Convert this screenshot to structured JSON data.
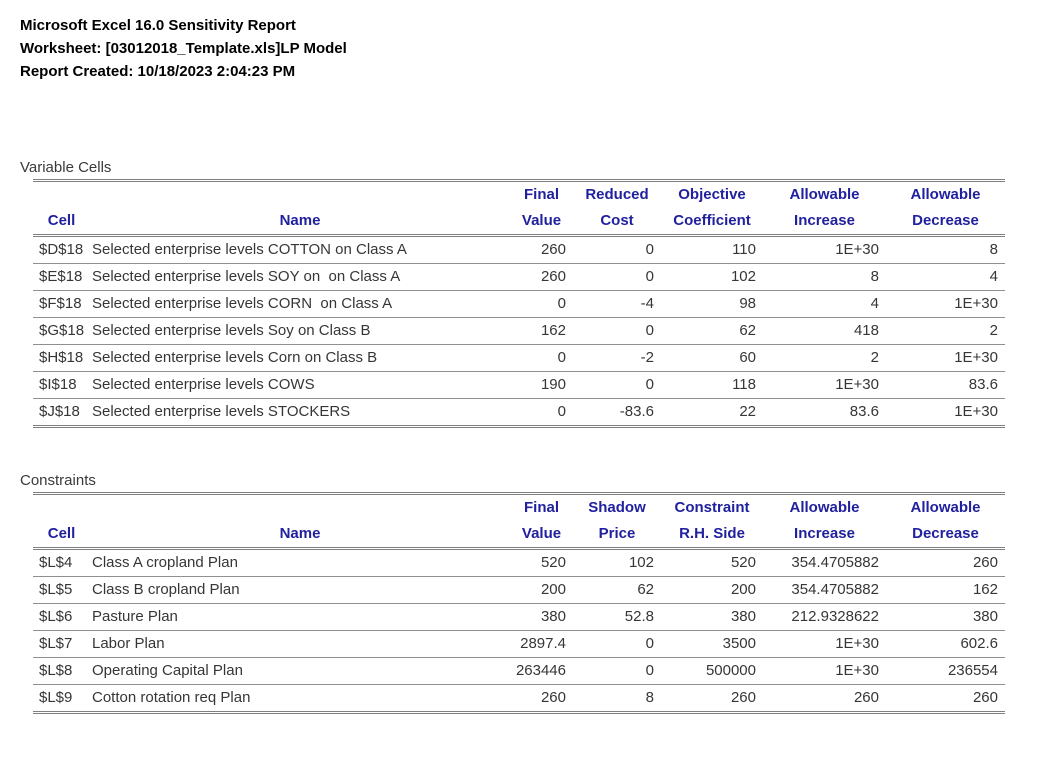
{
  "header": {
    "title": "Microsoft Excel 16.0 Sensitivity Report",
    "worksheet": "Worksheet: [03012018_Template.xls]LP Model",
    "created": "Report Created: 10/18/2023 2:04:23 PM"
  },
  "colors": {
    "header_text": "#21219F",
    "border": "#808080",
    "body_text": "#363636"
  },
  "variable_cells": {
    "section_label": "Variable Cells",
    "columns": [
      {
        "line1": "",
        "line2": "Cell"
      },
      {
        "line1": "",
        "line2": "Name"
      },
      {
        "line1": "Final",
        "line2": "Value"
      },
      {
        "line1": "Reduced",
        "line2": "Cost"
      },
      {
        "line1": "Objective",
        "line2": "Coefficient"
      },
      {
        "line1": "Allowable",
        "line2": "Increase"
      },
      {
        "line1": "Allowable",
        "line2": "Decrease"
      }
    ],
    "rows": [
      [
        "$D$18",
        "Selected enterprise levels COTTON on Class A",
        "260",
        "0",
        "110",
        "1E+30",
        "8"
      ],
      [
        "$E$18",
        "Selected enterprise levels SOY on  on Class A",
        "260",
        "0",
        "102",
        "8",
        "4"
      ],
      [
        "$F$18",
        "Selected enterprise levels CORN  on Class A",
        "0",
        "-4",
        "98",
        "4",
        "1E+30"
      ],
      [
        "$G$18",
        "Selected enterprise levels Soy on Class B",
        "162",
        "0",
        "62",
        "418",
        "2"
      ],
      [
        "$H$18",
        "Selected enterprise levels Corn on Class B",
        "0",
        "-2",
        "60",
        "2",
        "1E+30"
      ],
      [
        "$I$18",
        "Selected enterprise levels COWS",
        "190",
        "0",
        "118",
        "1E+30",
        "83.6"
      ],
      [
        "$J$18",
        "Selected enterprise levels STOCKERS",
        "0",
        "-83.6",
        "22",
        "83.6",
        "1E+30"
      ]
    ]
  },
  "constraints": {
    "section_label": "Constraints",
    "columns": [
      {
        "line1": "",
        "line2": "Cell"
      },
      {
        "line1": "",
        "line2": "Name"
      },
      {
        "line1": "Final",
        "line2": "Value"
      },
      {
        "line1": "Shadow",
        "line2": "Price"
      },
      {
        "line1": "Constraint",
        "line2": "R.H. Side"
      },
      {
        "line1": "Allowable",
        "line2": "Increase"
      },
      {
        "line1": "Allowable",
        "line2": "Decrease"
      }
    ],
    "rows": [
      [
        "$L$4",
        "Class A cropland Plan",
        "520",
        "102",
        "520",
        "354.4705882",
        "260"
      ],
      [
        "$L$5",
        "Class B cropland Plan",
        "200",
        "62",
        "200",
        "354.4705882",
        "162"
      ],
      [
        "$L$6",
        "Pasture Plan",
        "380",
        "52.8",
        "380",
        "212.9328622",
        "380"
      ],
      [
        "$L$7",
        "Labor Plan",
        "2897.4",
        "0",
        "3500",
        "1E+30",
        "602.6"
      ],
      [
        "$L$8",
        "Operating Capital Plan",
        "263446",
        "0",
        "500000",
        "1E+30",
        "236554"
      ],
      [
        "$L$9",
        "Cotton rotation req Plan",
        "260",
        "8",
        "260",
        "260",
        "260"
      ]
    ]
  }
}
